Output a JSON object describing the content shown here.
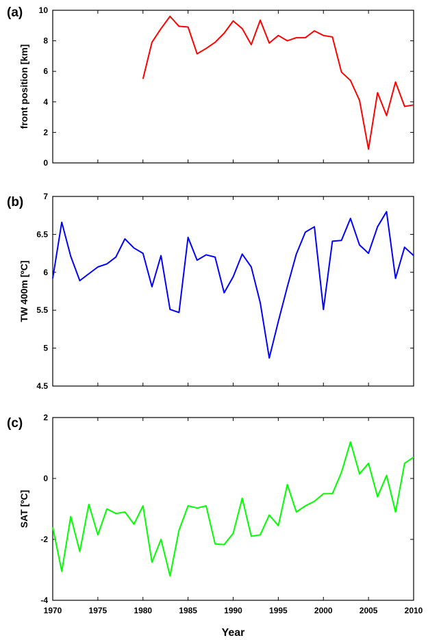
{
  "chart_data": [
    {
      "type": "line",
      "panel_label": "(a)",
      "ylabel": "front position [km]",
      "xlabel": "",
      "xlim": [
        1970,
        2010
      ],
      "ylim": [
        0,
        10
      ],
      "yticks": [
        "0",
        "2",
        "4",
        "6",
        "8",
        "10"
      ],
      "xticks": [],
      "color": "#ff0000",
      "x": [
        1980,
        1981,
        1982,
        1983,
        1984,
        1985,
        1986,
        1987,
        1988,
        1989,
        1990,
        1991,
        1992,
        1993,
        1994,
        1995,
        1996,
        1997,
        1998,
        1999,
        2000,
        2001,
        2002,
        2003,
        2004,
        2005,
        2006,
        2007,
        2008,
        2009,
        2010
      ],
      "values": [
        5.5,
        7.9,
        8.8,
        9.6,
        8.95,
        8.9,
        7.15,
        7.5,
        7.9,
        8.5,
        9.3,
        8.8,
        7.75,
        9.35,
        7.85,
        8.35,
        8.0,
        8.2,
        8.2,
        8.65,
        8.35,
        8.25,
        5.95,
        5.4,
        4.1,
        0.9,
        4.6,
        3.1,
        5.3,
        3.7,
        3.8
      ]
    },
    {
      "type": "line",
      "panel_label": "(b)",
      "ylabel": "TW 400m [ºC]",
      "xlabel": "",
      "xlim": [
        1970,
        2010
      ],
      "ylim": [
        4.5,
        7
      ],
      "yticks": [
        "4.5",
        "5",
        "5.5",
        "6",
        "6.5",
        "7"
      ],
      "xticks": [],
      "color": "#0000ff",
      "x": [
        1970,
        1971,
        1972,
        1973,
        1974,
        1975,
        1976,
        1977,
        1978,
        1979,
        1980,
        1981,
        1982,
        1983,
        1984,
        1985,
        1986,
        1987,
        1988,
        1989,
        1990,
        1991,
        1992,
        1993,
        1994,
        1995,
        1996,
        1997,
        1998,
        1999,
        2000,
        2001,
        2002,
        2003,
        2004,
        2005,
        2006,
        2007,
        2008,
        2009,
        2010
      ],
      "values": [
        5.92,
        6.66,
        6.21,
        5.89,
        5.98,
        6.07,
        6.11,
        6.2,
        6.44,
        6.32,
        6.25,
        5.81,
        6.22,
        5.51,
        5.47,
        6.46,
        6.16,
        6.23,
        6.2,
        5.73,
        5.94,
        6.24,
        6.07,
        5.6,
        4.87,
        5.35,
        5.81,
        6.24,
        6.53,
        6.6,
        5.51,
        6.41,
        6.42,
        6.71,
        6.36,
        6.25,
        6.6,
        6.8,
        5.92,
        6.33,
        6.22
      ]
    },
    {
      "type": "line",
      "panel_label": "(c)",
      "ylabel": "SAT [ºC]",
      "xlabel": "Year",
      "xlim": [
        1970,
        2010
      ],
      "ylim": [
        -4,
        2
      ],
      "yticks": [
        "-4",
        "-2",
        "0",
        "2"
      ],
      "xticks": [
        "1970",
        "1975",
        "1980",
        "1985",
        "1990",
        "1995",
        "2000",
        "2005",
        "2010"
      ],
      "color": "#00ff00",
      "x": [
        1970,
        1971,
        1972,
        1973,
        1974,
        1975,
        1976,
        1977,
        1978,
        1979,
        1980,
        1981,
        1982,
        1983,
        1984,
        1985,
        1986,
        1987,
        1988,
        1989,
        1990,
        1991,
        1992,
        1993,
        1994,
        1995,
        1996,
        1997,
        1998,
        1999,
        2000,
        2001,
        2002,
        2003,
        2004,
        2005,
        2006,
        2007,
        2008,
        2009,
        2010
      ],
      "values": [
        -1.6,
        -3.05,
        -1.25,
        -2.4,
        -0.85,
        -1.85,
        -1.0,
        -1.15,
        -1.1,
        -1.5,
        -0.9,
        -2.75,
        -2.0,
        -3.2,
        -1.7,
        -0.9,
        -0.97,
        -0.9,
        -2.15,
        -2.17,
        -1.8,
        -0.65,
        -1.9,
        -1.85,
        -1.2,
        -1.55,
        -0.2,
        -1.1,
        -0.9,
        -0.75,
        -0.5,
        -0.5,
        0.2,
        1.2,
        0.15,
        0.5,
        -0.6,
        0.1,
        -1.1,
        0.5,
        0.7
      ]
    }
  ]
}
